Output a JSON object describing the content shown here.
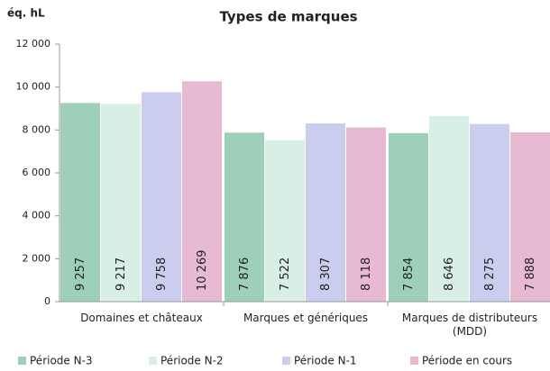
{
  "chart_data": {
    "type": "bar",
    "title": "Types de marques",
    "y_label": "éq. hL",
    "categories": [
      "Domaines et châteaux",
      "Marques et génériques",
      "Marques de distributeurs (MDD)"
    ],
    "series": [
      {
        "name": "Période N-3",
        "color": "#9dcfb9",
        "values": [
          9257,
          7876,
          7854
        ],
        "value_labels": [
          "9 257",
          "7 876",
          "7 854"
        ]
      },
      {
        "name": "Période N-2",
        "color": "#d7efe5",
        "values": [
          9217,
          7522,
          8646
        ],
        "value_labels": [
          "9 217",
          "7 522",
          "8 646"
        ]
      },
      {
        "name": "Période N-1",
        "color": "#cacdee",
        "values": [
          9758,
          8307,
          8275
        ],
        "value_labels": [
          "9 758",
          "8 307",
          "8 275"
        ]
      },
      {
        "name": "Période en cours",
        "color": "#e7b9d3",
        "values": [
          10269,
          8118,
          7888
        ],
        "value_labels": [
          "10 269",
          "8 118",
          "7 888"
        ]
      }
    ],
    "ylim": [
      0,
      12000
    ],
    "yticks": [
      0,
      {
        "value": 2000,
        "label": "2 000"
      },
      {
        "value": 4000,
        "label": "4 000"
      },
      {
        "value": 6000,
        "label": "6 000"
      },
      {
        "value": 8000,
        "label": "8 000"
      },
      {
        "value": 10000,
        "label": "10 000"
      },
      {
        "value": 12000,
        "label": "12 000"
      }
    ],
    "legend": "bottom"
  }
}
